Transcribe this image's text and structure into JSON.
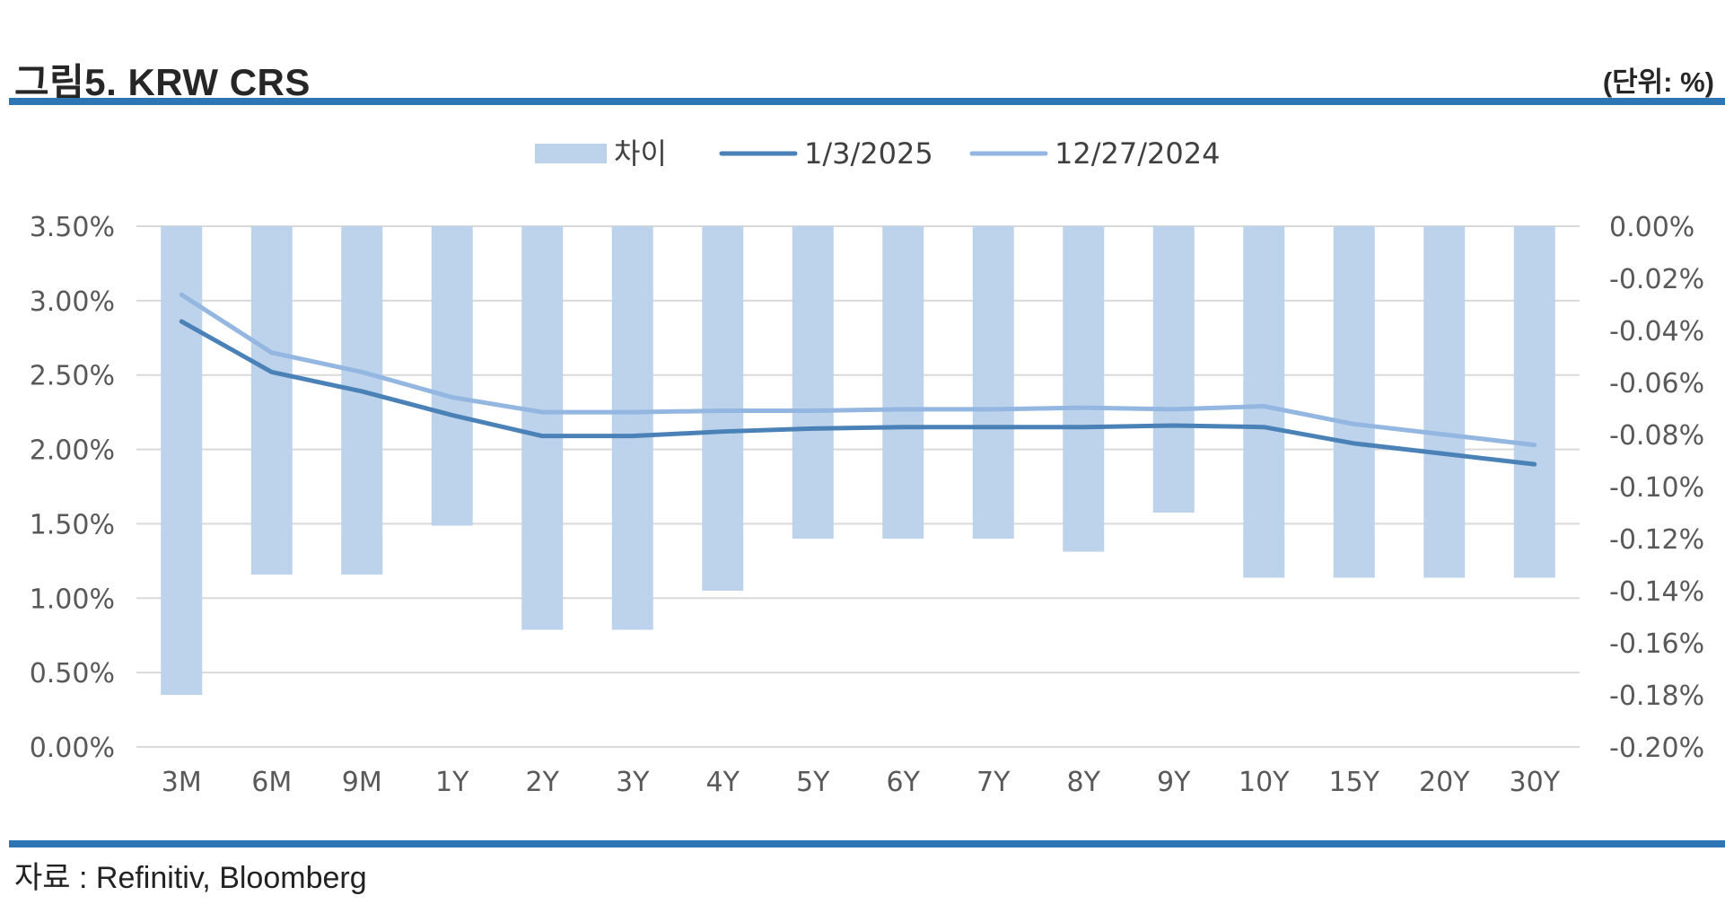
{
  "header": {
    "title": "그림5. KRW CRS",
    "unit": "(단위: %)"
  },
  "footer": {
    "source": "자료 : Refinitiv, Bloomberg"
  },
  "colors": {
    "rule": "#2e75b6",
    "bar": "#bdd2eb",
    "line_current": "#4a82b8",
    "line_previous": "#93b7e0",
    "grid": "#d9d9d9"
  },
  "chart_data": {
    "type": "bar+line",
    "categories": [
      "3M",
      "6M",
      "9M",
      "1Y",
      "2Y",
      "3Y",
      "4Y",
      "5Y",
      "6Y",
      "7Y",
      "8Y",
      "9Y",
      "10Y",
      "15Y",
      "20Y",
      "30Y"
    ],
    "series": [
      {
        "name": "차이",
        "type": "bar",
        "axis": "right",
        "values": [
          -0.18,
          -0.1338,
          -0.1338,
          -0.115,
          -0.155,
          -0.155,
          -0.14,
          -0.12,
          -0.12,
          -0.12,
          -0.125,
          -0.11,
          -0.135,
          -0.135,
          -0.135,
          -0.135
        ]
      },
      {
        "name": "1/3/2025",
        "type": "line",
        "axis": "left",
        "values": [
          2.86,
          2.52,
          2.39,
          2.23,
          2.09,
          2.09,
          2.12,
          2.14,
          2.15,
          2.15,
          2.15,
          2.16,
          2.15,
          2.04,
          1.97,
          1.9
        ]
      },
      {
        "name": "12/27/2024",
        "type": "line",
        "axis": "left",
        "values": [
          3.04,
          2.65,
          2.52,
          2.35,
          2.25,
          2.25,
          2.26,
          2.26,
          2.27,
          2.27,
          2.28,
          2.27,
          2.29,
          2.17,
          2.1,
          2.03
        ]
      }
    ],
    "y_left": {
      "range": [
        0,
        3.5
      ],
      "ticks": [
        "0.00%",
        "0.50%",
        "1.00%",
        "1.50%",
        "2.00%",
        "2.50%",
        "3.00%",
        "3.50%"
      ]
    },
    "y_right": {
      "range": [
        -0.2,
        0
      ],
      "ticks": [
        "-0.20%",
        "-0.18%",
        "-0.16%",
        "-0.14%",
        "-0.12%",
        "-0.10%",
        "-0.08%",
        "-0.06%",
        "-0.04%",
        "-0.02%",
        "0.00%"
      ]
    },
    "grid": true,
    "legend_position": "top-center"
  }
}
